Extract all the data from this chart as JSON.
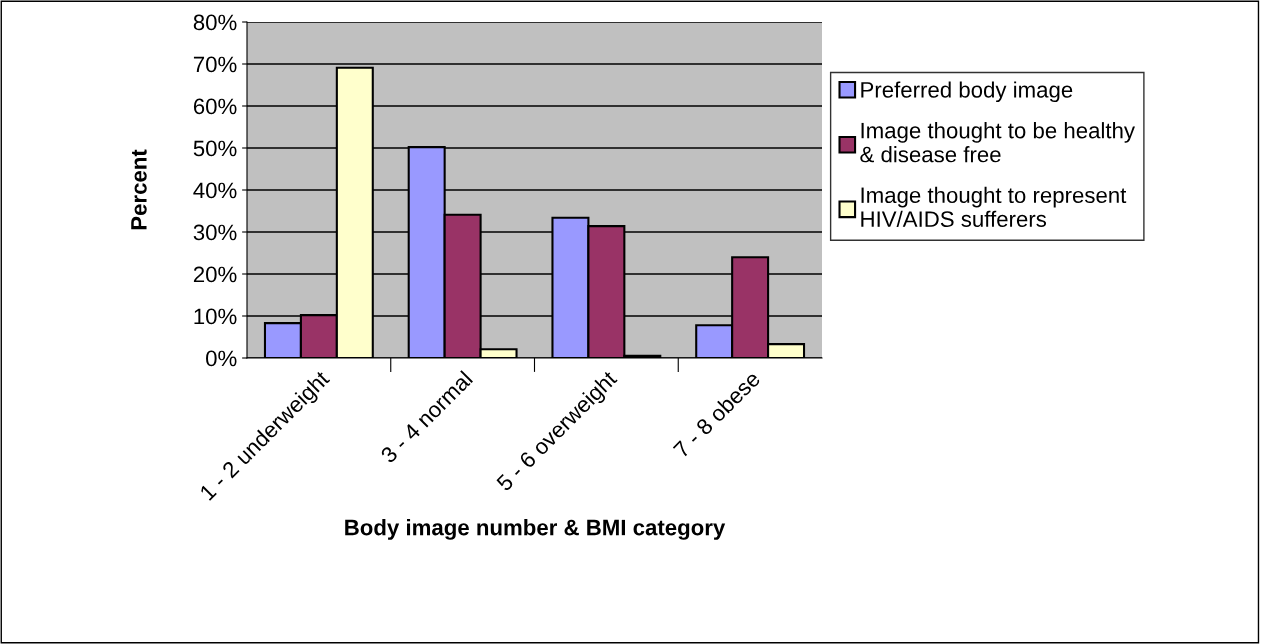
{
  "chart_data": {
    "type": "bar",
    "xlabel": "Body image number & BMI category",
    "ylabel": "Percent",
    "categories": [
      "1 - 2 underweight",
      "3 - 4 normal",
      "5 - 6 overweight",
      "7 - 8 obese"
    ],
    "series": [
      {
        "name": "Preferred body image",
        "color": "#9999ff",
        "values": [
          8.3,
          50.2,
          33.4,
          7.8
        ]
      },
      {
        "name": "Image thought to be healthy\n& disease free",
        "color": "#993366",
        "values": [
          10.2,
          34.1,
          31.4,
          24.0
        ]
      },
      {
        "name": "Image thought to represent\nHIV/AIDS sufferers",
        "color": "#ffffcc",
        "values": [
          69.1,
          2.1,
          0.5,
          3.3
        ]
      }
    ],
    "ylim": [
      0,
      80
    ],
    "yticks": [
      {
        "value": 0,
        "label": "0%"
      },
      {
        "value": 10,
        "label": "10%"
      },
      {
        "value": 20,
        "label": "20%"
      },
      {
        "value": 30,
        "label": "30%"
      },
      {
        "value": 40,
        "label": "40%"
      },
      {
        "value": 50,
        "label": "50%"
      },
      {
        "value": 60,
        "label": "60%"
      },
      {
        "value": 70,
        "label": "70%"
      },
      {
        "value": 80,
        "label": "80%"
      }
    ],
    "grid": "y",
    "legend": "right"
  }
}
